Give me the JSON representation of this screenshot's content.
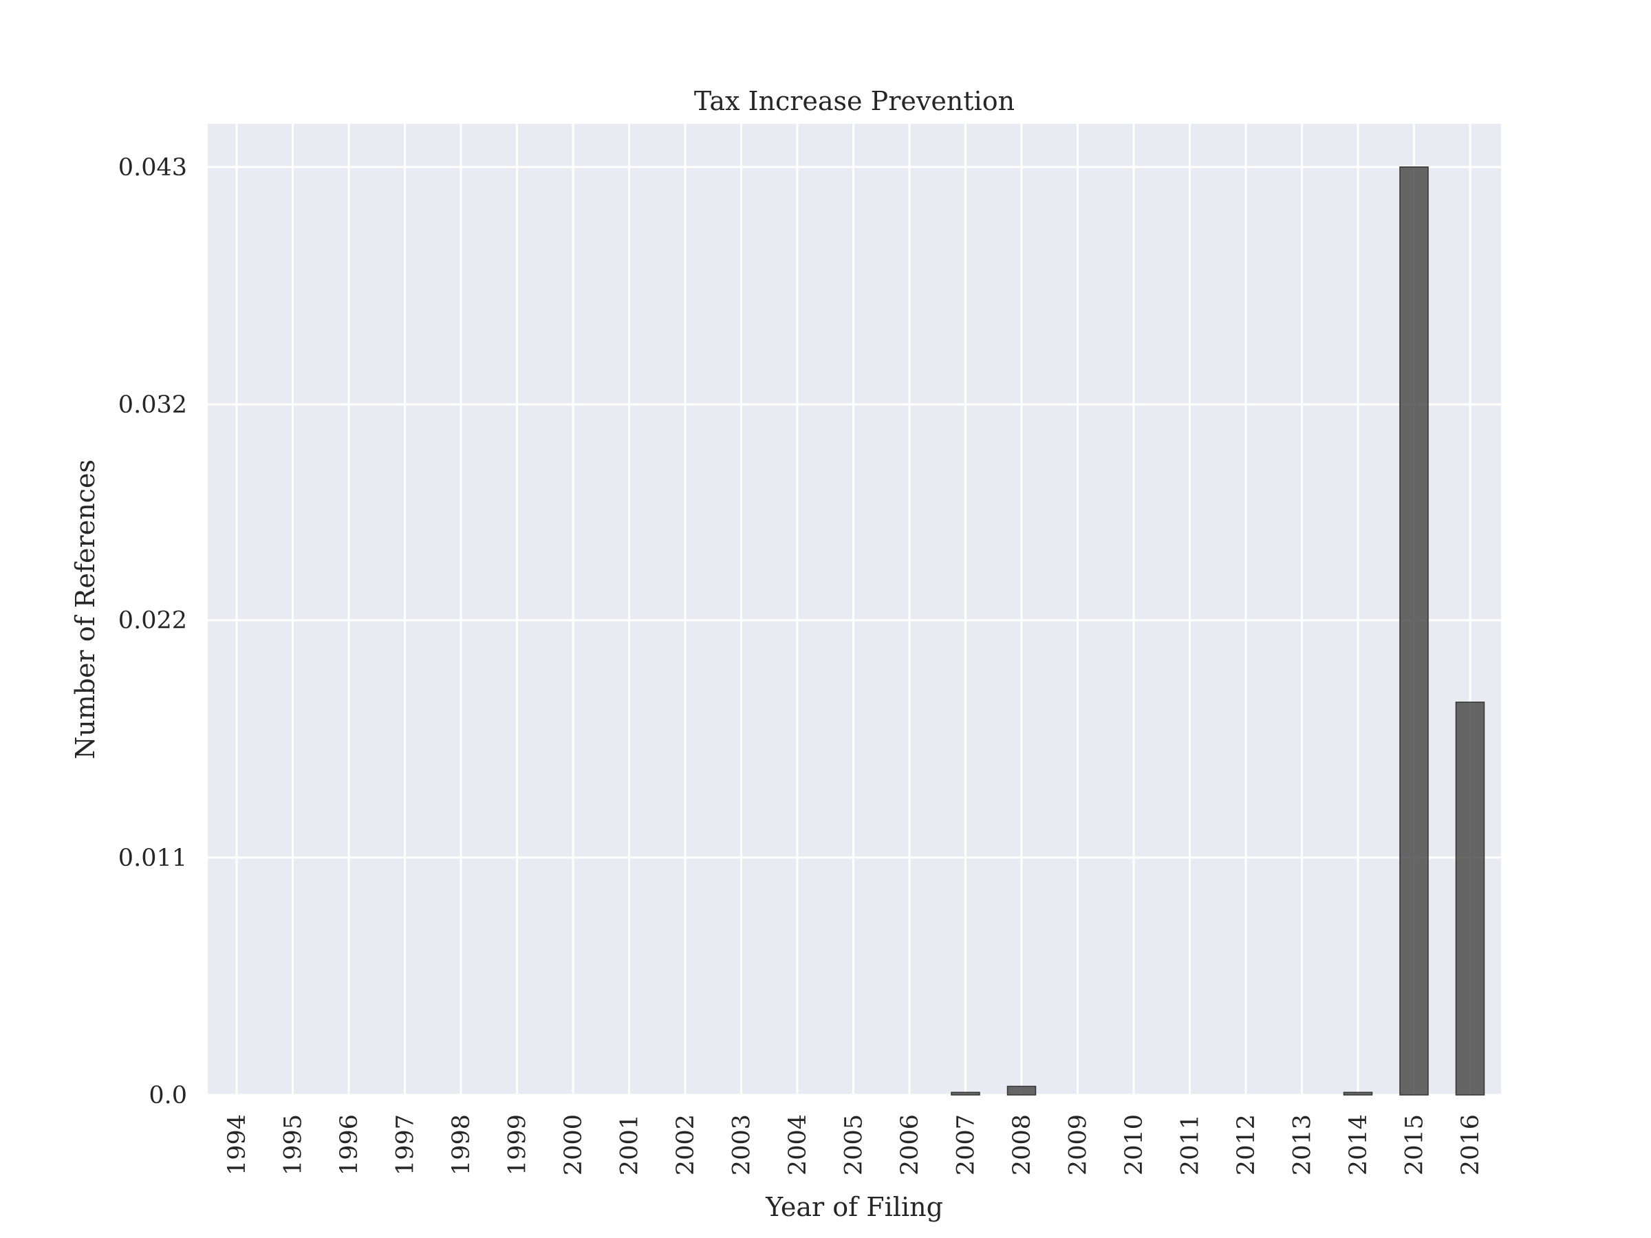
{
  "chart_data": {
    "type": "bar",
    "title": "Tax Increase Prevention",
    "xlabel": "Year of Filing",
    "ylabel": "Number of References",
    "categories": [
      "1994",
      "1995",
      "1996",
      "1997",
      "1998",
      "1999",
      "2000",
      "2001",
      "2002",
      "2003",
      "2004",
      "2005",
      "2006",
      "2007",
      "2008",
      "2009",
      "2010",
      "2011",
      "2012",
      "2013",
      "2014",
      "2015",
      "2016"
    ],
    "values": [
      0,
      0,
      0,
      0,
      0,
      0,
      0,
      0,
      0,
      0,
      0,
      0,
      0,
      0.00012,
      0.0004,
      0,
      0,
      0,
      0,
      0,
      0.00012,
      0.043,
      0.0182
    ],
    "ylim": [
      0,
      0.045
    ],
    "yticks": [
      0.0,
      0.011,
      0.022,
      0.032,
      0.043
    ],
    "ytick_labels": [
      "0.0",
      "0.011",
      "0.022",
      "0.032",
      "0.043"
    ],
    "grid": true,
    "colors": {
      "plot_background": "#eaeaf2",
      "grid": "#ffffff",
      "bar": "#4d4d4d",
      "text": "#262626"
    }
  }
}
